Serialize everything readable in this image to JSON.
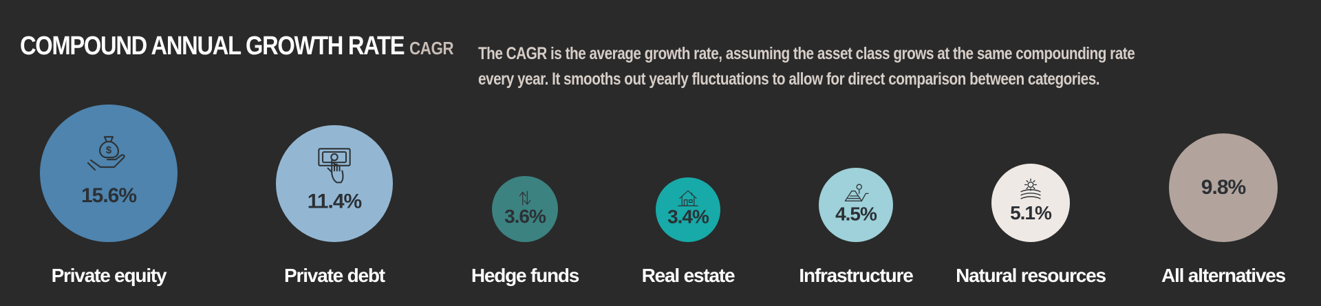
{
  "header": {
    "title": "COMPOUND ANNUAL GROWTH RATE",
    "abbreviation": "CAGR",
    "description_line1": "The CAGR is the average growth rate, assuming the asset class grows at the same compounding rate",
    "description_line2": "every year. It smooths out yearly fluctuations to allow for direct comparison between categories."
  },
  "chart_data": {
    "type": "bubble",
    "title": "COMPOUND ANNUAL GROWTH RATE",
    "unit": "%",
    "categories": [
      "Private equity",
      "Private debt",
      "Hedge funds",
      "Real estate",
      "Infrastructure",
      "Natural resources",
      "All alternatives"
    ],
    "values": [
      15.6,
      11.4,
      3.6,
      3.4,
      4.5,
      5.1,
      9.8
    ],
    "value_labels": [
      "15.6%",
      "11.4%",
      "3.6%",
      "3.4%",
      "4.5%",
      "5.1%",
      "9.8%"
    ],
    "colors": [
      "#4e84ae",
      "#93b7d3",
      "#3c8280",
      "#17aaa8",
      "#9ed1d9",
      "#efe9e5",
      "#b2a49c"
    ],
    "icons": [
      "money-bag-in-hand-icon",
      "hand-on-banknote-icon",
      "exchange-arrows-icon",
      "house-icon",
      "road-pin-icon",
      "sun-over-field-icon",
      ""
    ]
  }
}
